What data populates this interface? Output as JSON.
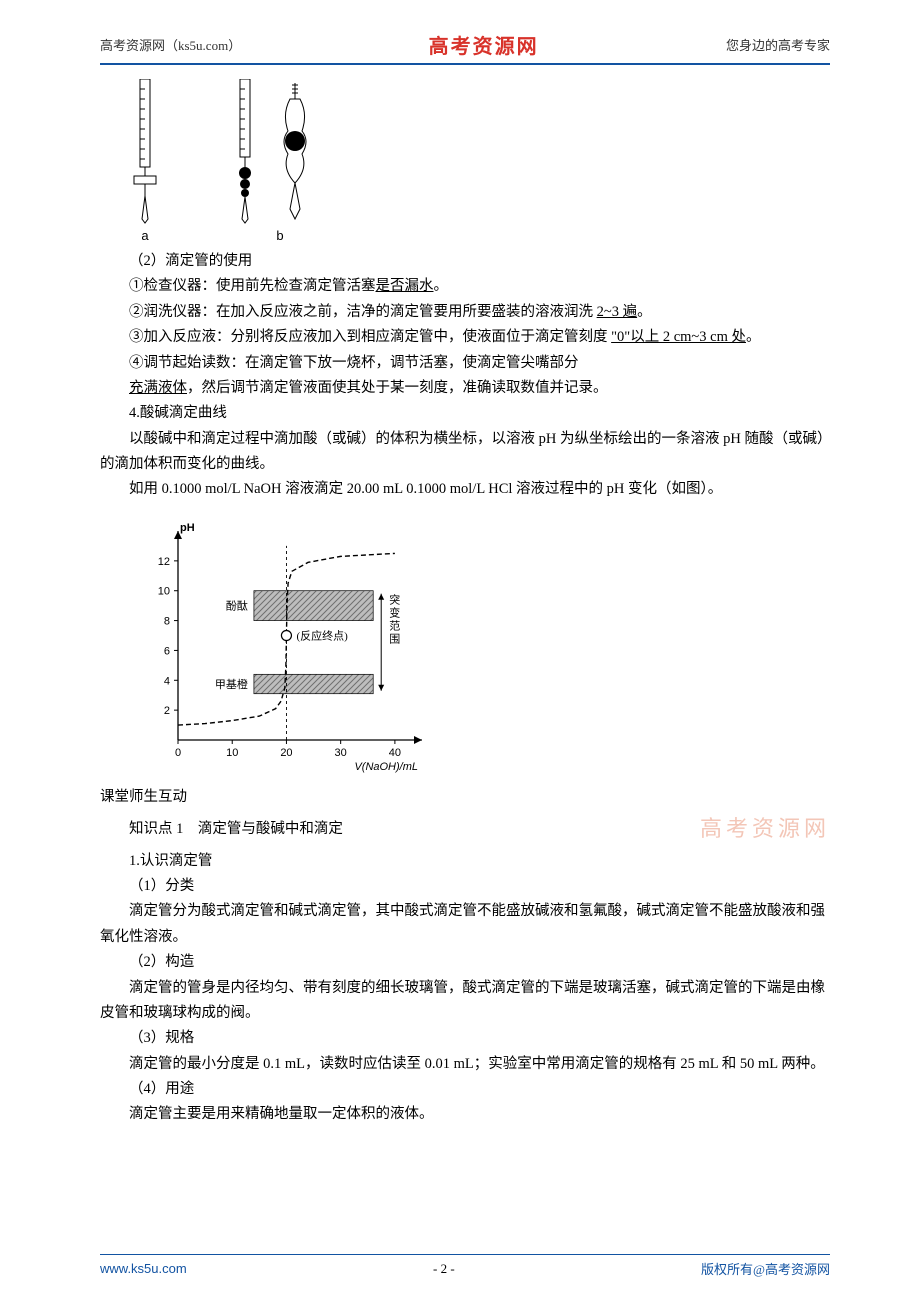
{
  "header": {
    "left": "高考资源网（ks5u.com）",
    "center": "高考资源网",
    "right": "您身边的高考专家"
  },
  "burettes": {
    "label_a": "a",
    "label_b": "b"
  },
  "text": {
    "p1_prefix": "（2）滴定管的使用",
    "p2a": "①检查仪器：使用前先检查滴定管活塞",
    "p2b": "是否漏水",
    "p2c": "。",
    "p3a": "②润洗仪器：在加入反应液之前，洁净的滴定管要用所要盛装的溶液润洗 ",
    "p3b": "2~3 遍",
    "p3c": "。",
    "p4a": "③加入反应液：分别将反应液加入到相应滴定管中，使液面位于滴定管刻度 ",
    "p4b": "\"0\"以上 2 cm~3 cm 处",
    "p4c": "。",
    "p5": "④调节起始读数：在滴定管下放一烧杯，调节活塞，使滴定管尖嘴部分",
    "p6a": "充满液体",
    "p6b": "，然后调节滴定管液面使其处于某一刻度，准确读取数值并记录。",
    "p7": "4.酸碱滴定曲线",
    "p8": "以酸碱中和滴定过程中滴加酸（或碱）的体积为横坐标，以溶液 pH 为纵坐标绘出的一条溶液 pH 随酸（或碱）的滴加体积而变化的曲线。",
    "p9": "如用 0.1000 mol/L NaOH 溶液滴定 20.00 mL 0.1000 mol/L HCl 溶液过程中的 pH 变化（如图）。",
    "s1": "课堂师生互动",
    "s2": "知识点 1　滴定管与酸碱中和滴定",
    "s3": "1.认识滴定管",
    "s4": "（1）分类",
    "s5": "滴定管分为酸式滴定管和碱式滴定管，其中酸式滴定管不能盛放碱液和氢氟酸，碱式滴定管不能盛放酸液和强氧化性溶液。",
    "s6": "（2）构造",
    "s7": "滴定管的管身是内径均匀、带有刻度的细长玻璃管，酸式滴定管的下端是玻璃活塞，碱式滴定管的下端是由橡皮管和玻璃球构成的阀。",
    "s8": "（3）规格",
    "s9": "滴定管的最小分度是 0.1 mL，读数时应估读至 0.01 mL；实验室中常用滴定管的规格有 25 mL 和 50 mL 两种。",
    "s10": "（4）用途",
    "s11": "滴定管主要是用来精确地量取一定体积的液体。"
  },
  "watermark": "高考资源网",
  "chart": {
    "y_label": "pH",
    "x_label": "V(NaOH)/mL",
    "x_ticks": [
      0,
      10,
      20,
      30,
      40
    ],
    "y_ticks": [
      2,
      4,
      6,
      8,
      10,
      12
    ],
    "x_max": 45,
    "y_max": 14,
    "indicator1": "酚酞",
    "indicator2": "甲基橙",
    "endpoint_label": "(反应终点)",
    "range_label": "突变范围",
    "band1_y_from": 8,
    "band1_y_to": 10,
    "band2_y_from": 3.1,
    "band2_y_to": 4.4,
    "curve_color": "#000000",
    "axis_color": "#000000",
    "band_fill": "#bdbdbd",
    "band_hatch": "#6f6f6f",
    "tick_font_size": 11,
    "label_font_size": 11
  },
  "footer": {
    "left": "www.ks5u.com",
    "center": "- 2 -",
    "right": "版权所有@高考资源网"
  }
}
